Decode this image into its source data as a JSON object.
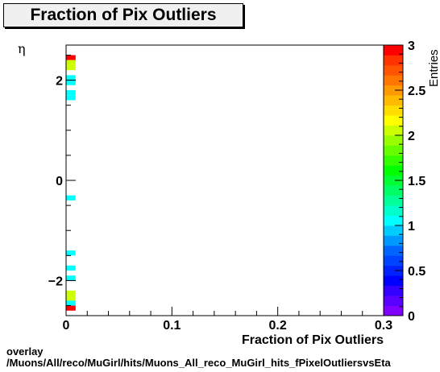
{
  "title": "Fraction of Pix Outliers",
  "footer": {
    "line1": "overlay",
    "line2": "/Muons/All/reco/MuGirl/hits/Muons_All_reco_MuGirl_hits_fPixelOutliersvsEta"
  },
  "chart_data": {
    "type": "heatmap",
    "title": "Fraction of Pix Outliers",
    "xlabel": "Fraction of Pix Outliers",
    "ylabel": "η",
    "zlabel": "Entries",
    "xlim": [
      0,
      0.3
    ],
    "ylim": [
      -2.7,
      2.7
    ],
    "zlim": [
      0,
      3
    ],
    "x_ticks": [
      0,
      0.1,
      0.2,
      0.3
    ],
    "x_tick_labels": [
      "0",
      "0.1",
      "0.2",
      "0.3"
    ],
    "y_ticks": [
      -2,
      0,
      2
    ],
    "y_tick_labels": [
      "−2",
      "0",
      "2"
    ],
    "z_ticks": [
      0,
      0.5,
      1,
      1.5,
      2,
      2.5,
      3
    ],
    "z_tick_labels": [
      "0",
      "0.5",
      "1",
      "1.5",
      "2",
      "2.5",
      "3"
    ],
    "bin_width_x": 0.009,
    "bin_height_eta": 0.1,
    "cells": [
      {
        "x": 0.0045,
        "eta": 2.45,
        "value": 3
      },
      {
        "x": 0.0045,
        "eta": 2.35,
        "value": 2
      },
      {
        "x": 0.0045,
        "eta": 2.25,
        "value": 2
      },
      {
        "x": 0.0045,
        "eta": 2.05,
        "value": 1
      },
      {
        "x": 0.0045,
        "eta": 1.95,
        "value": 1
      },
      {
        "x": 0.0045,
        "eta": 1.75,
        "value": 1
      },
      {
        "x": 0.0045,
        "eta": 1.65,
        "value": 1
      },
      {
        "x": 0.0045,
        "eta": -0.35,
        "value": 1
      },
      {
        "x": 0.0045,
        "eta": -1.45,
        "value": 1
      },
      {
        "x": 0.0045,
        "eta": -1.75,
        "value": 1
      },
      {
        "x": 0.0045,
        "eta": -1.95,
        "value": 1
      },
      {
        "x": 0.0045,
        "eta": -2.25,
        "value": 2
      },
      {
        "x": 0.0045,
        "eta": -2.35,
        "value": 2
      },
      {
        "x": 0.0045,
        "eta": -2.45,
        "value": 1
      },
      {
        "x": 0.0045,
        "eta": -2.55,
        "value": 3
      }
    ],
    "palette": [
      "#7f00ff",
      "#5a00ff",
      "#3300ff",
      "#0000ff",
      "#0022ff",
      "#0044ff",
      "#0066ff",
      "#0099ff",
      "#00ccff",
      "#00ffff",
      "#00ffcc",
      "#00ff99",
      "#00ff66",
      "#00ff33",
      "#00ff00",
      "#33ff00",
      "#66ff00",
      "#99ff00",
      "#ccff00",
      "#ffff00",
      "#ffdd00",
      "#ffbb00",
      "#ff9900",
      "#ff7700",
      "#ff5500",
      "#ff3300",
      "#ff0000"
    ]
  }
}
